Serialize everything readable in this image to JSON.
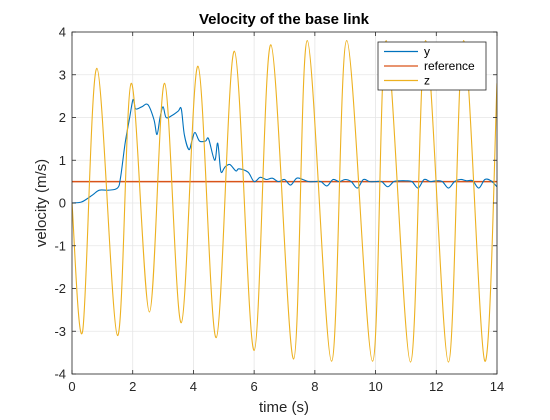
{
  "chart_data": {
    "type": "line",
    "title": "Velocity of the base link",
    "xlabel": "time (s)",
    "ylabel": "velocity (m/s)",
    "xlim": [
      0,
      14
    ],
    "ylim": [
      -4,
      4
    ],
    "xticks": [
      "0",
      "2",
      "4",
      "6",
      "8",
      "10",
      "12",
      "14"
    ],
    "yticks": [
      "-4",
      "-3",
      "-2",
      "-1",
      "0",
      "1",
      "2",
      "3",
      "4"
    ],
    "grid": true,
    "legend_position": "top-right",
    "series": [
      {
        "name": "y",
        "color": "#0072BD",
        "x": [
          0,
          0.3,
          0.5,
          0.7,
          0.9,
          1.2,
          1.5,
          1.6,
          1.75,
          1.9,
          2.0,
          2.05,
          2.1,
          2.3,
          2.5,
          2.7,
          2.8,
          2.9,
          3.0,
          3.1,
          3.3,
          3.5,
          3.6,
          3.7,
          3.85,
          3.95,
          4.05,
          4.2,
          4.4,
          4.5,
          4.7,
          4.8,
          4.9,
          5.0,
          5.05,
          5.2,
          5.4,
          5.5,
          5.8,
          6.0,
          6.2,
          6.4,
          6.6,
          6.8,
          7.0,
          7.2,
          7.4,
          7.6,
          7.8,
          8.0,
          8.2,
          8.4,
          8.6,
          8.8,
          9.0,
          9.2,
          9.4,
          9.6,
          9.8,
          10.0,
          10.2,
          10.4,
          10.6,
          10.8,
          11.0,
          11.2,
          11.4,
          11.6,
          11.8,
          12.0,
          12.2,
          12.4,
          12.6,
          12.8,
          13.0,
          13.2,
          13.4,
          13.6,
          13.8,
          14.0
        ],
        "y": [
          0.0,
          0.02,
          0.1,
          0.2,
          0.3,
          0.3,
          0.35,
          0.6,
          1.4,
          2.0,
          2.4,
          2.35,
          2.2,
          2.25,
          2.3,
          1.95,
          1.6,
          2.0,
          2.25,
          2.0,
          2.05,
          2.15,
          2.2,
          1.6,
          1.25,
          1.45,
          1.65,
          1.45,
          1.45,
          1.5,
          1.0,
          1.4,
          0.75,
          0.8,
          0.85,
          0.9,
          0.75,
          0.8,
          0.72,
          0.5,
          0.6,
          0.55,
          0.58,
          0.5,
          0.55,
          0.42,
          0.58,
          0.55,
          0.5,
          0.5,
          0.5,
          0.4,
          0.55,
          0.5,
          0.55,
          0.5,
          0.35,
          0.55,
          0.5,
          0.5,
          0.5,
          0.38,
          0.5,
          0.52,
          0.52,
          0.5,
          0.35,
          0.55,
          0.5,
          0.52,
          0.5,
          0.35,
          0.5,
          0.55,
          0.52,
          0.52,
          0.35,
          0.55,
          0.52,
          0.38
        ]
      },
      {
        "name": "reference",
        "color": "#D95319",
        "x": [
          0,
          14
        ],
        "y": [
          0.5,
          0.5
        ]
      },
      {
        "name": "z",
        "color": "#EDB120",
        "x": [
          0,
          0.35,
          0.82,
          1.5,
          1.95,
          2.55,
          3.05,
          3.6,
          4.15,
          4.75,
          5.35,
          6.0,
          6.55,
          7.3,
          7.75,
          8.55,
          9.05,
          9.9,
          10.35,
          11.15,
          11.65,
          12.4,
          12.9,
          13.6,
          14.0
        ],
        "y": [
          0.0,
          -3.0,
          3.15,
          -3.1,
          2.8,
          -2.55,
          2.8,
          -2.8,
          3.2,
          -3.15,
          3.55,
          -3.45,
          3.7,
          -3.65,
          3.8,
          -3.7,
          3.8,
          -3.7,
          3.8,
          -3.72,
          3.8,
          -3.72,
          3.8,
          -3.7,
          2.8
        ]
      }
    ]
  }
}
